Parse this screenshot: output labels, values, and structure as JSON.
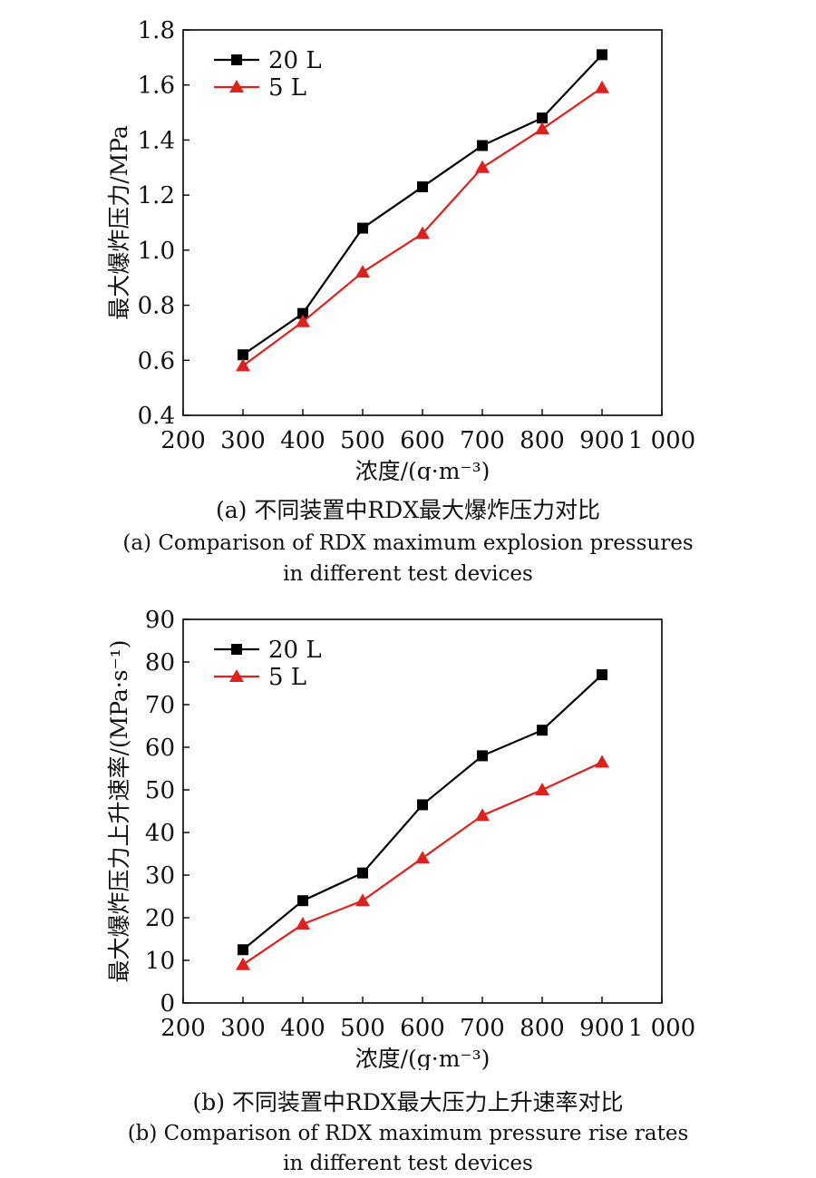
{
  "chart_data": [
    {
      "type": "line",
      "xlabel": "浓度/(g·m⁻³)",
      "ylabel": "最大爆炸压力/MPa",
      "xlim": [
        200,
        1000
      ],
      "ylim": [
        0.4,
        1.8
      ],
      "xticks": [
        200,
        300,
        400,
        500,
        600,
        700,
        800,
        900,
        1000
      ],
      "xtick_labels": [
        "200",
        "300",
        "400",
        "500",
        "600",
        "700",
        "800",
        "900",
        "1 000"
      ],
      "yticks": [
        0.4,
        0.6,
        0.8,
        1.0,
        1.2,
        1.4,
        1.6,
        1.8
      ],
      "ytick_labels": [
        "0.4",
        "0.6",
        "0.8",
        "1.0",
        "1.2",
        "1.4",
        "1.6",
        "1.8"
      ],
      "grid": false,
      "legend": "top-left",
      "x": [
        300,
        400,
        500,
        600,
        700,
        800,
        900
      ],
      "series": [
        {
          "name": "20 L",
          "marker": "square",
          "color": "#000000",
          "values": [
            0.62,
            0.77,
            1.08,
            1.23,
            1.38,
            1.48,
            1.71
          ]
        },
        {
          "name": "5 L",
          "marker": "triangle",
          "color": "#e0201c",
          "values": [
            0.58,
            0.74,
            0.92,
            1.06,
            1.3,
            1.44,
            1.59
          ]
        }
      ]
    },
    {
      "type": "line",
      "xlabel": "浓度/(g·m⁻³)",
      "ylabel": "最大爆炸压力上升速率/(MPa·s⁻¹)",
      "xlim": [
        200,
        1000
      ],
      "ylim": [
        0,
        90
      ],
      "xticks": [
        200,
        300,
        400,
        500,
        600,
        700,
        800,
        900,
        1000
      ],
      "xtick_labels": [
        "200",
        "300",
        "400",
        "500",
        "600",
        "700",
        "800",
        "900",
        "1 000"
      ],
      "yticks": [
        0,
        10,
        20,
        30,
        40,
        50,
        60,
        70,
        80,
        90
      ],
      "ytick_labels": [
        "0",
        "10",
        "20",
        "30",
        "40",
        "50",
        "60",
        "70",
        "80",
        "90"
      ],
      "grid": false,
      "legend": "top-left",
      "x": [
        300,
        400,
        500,
        600,
        700,
        800,
        900
      ],
      "series": [
        {
          "name": "20 L",
          "marker": "square",
          "color": "#000000",
          "values": [
            12.5,
            24,
            30.5,
            46.5,
            58,
            64,
            77
          ]
        },
        {
          "name": "5 L",
          "marker": "triangle",
          "color": "#e0201c",
          "values": [
            9,
            18.5,
            24,
            34,
            44,
            50,
            56.5
          ]
        }
      ]
    }
  ],
  "captions": {
    "a": {
      "zh": "(a) 不同装置中RDX最大爆炸压力对比",
      "en1": "(a) Comparison of RDX maximum explosion pressures",
      "en2": "in different test devices"
    },
    "b": {
      "zh": "(b) 不同装置中RDX最大压力上升速率对比",
      "en1": "(b) Comparison of RDX maximum pressure rise rates",
      "en2": "in different test devices"
    }
  }
}
